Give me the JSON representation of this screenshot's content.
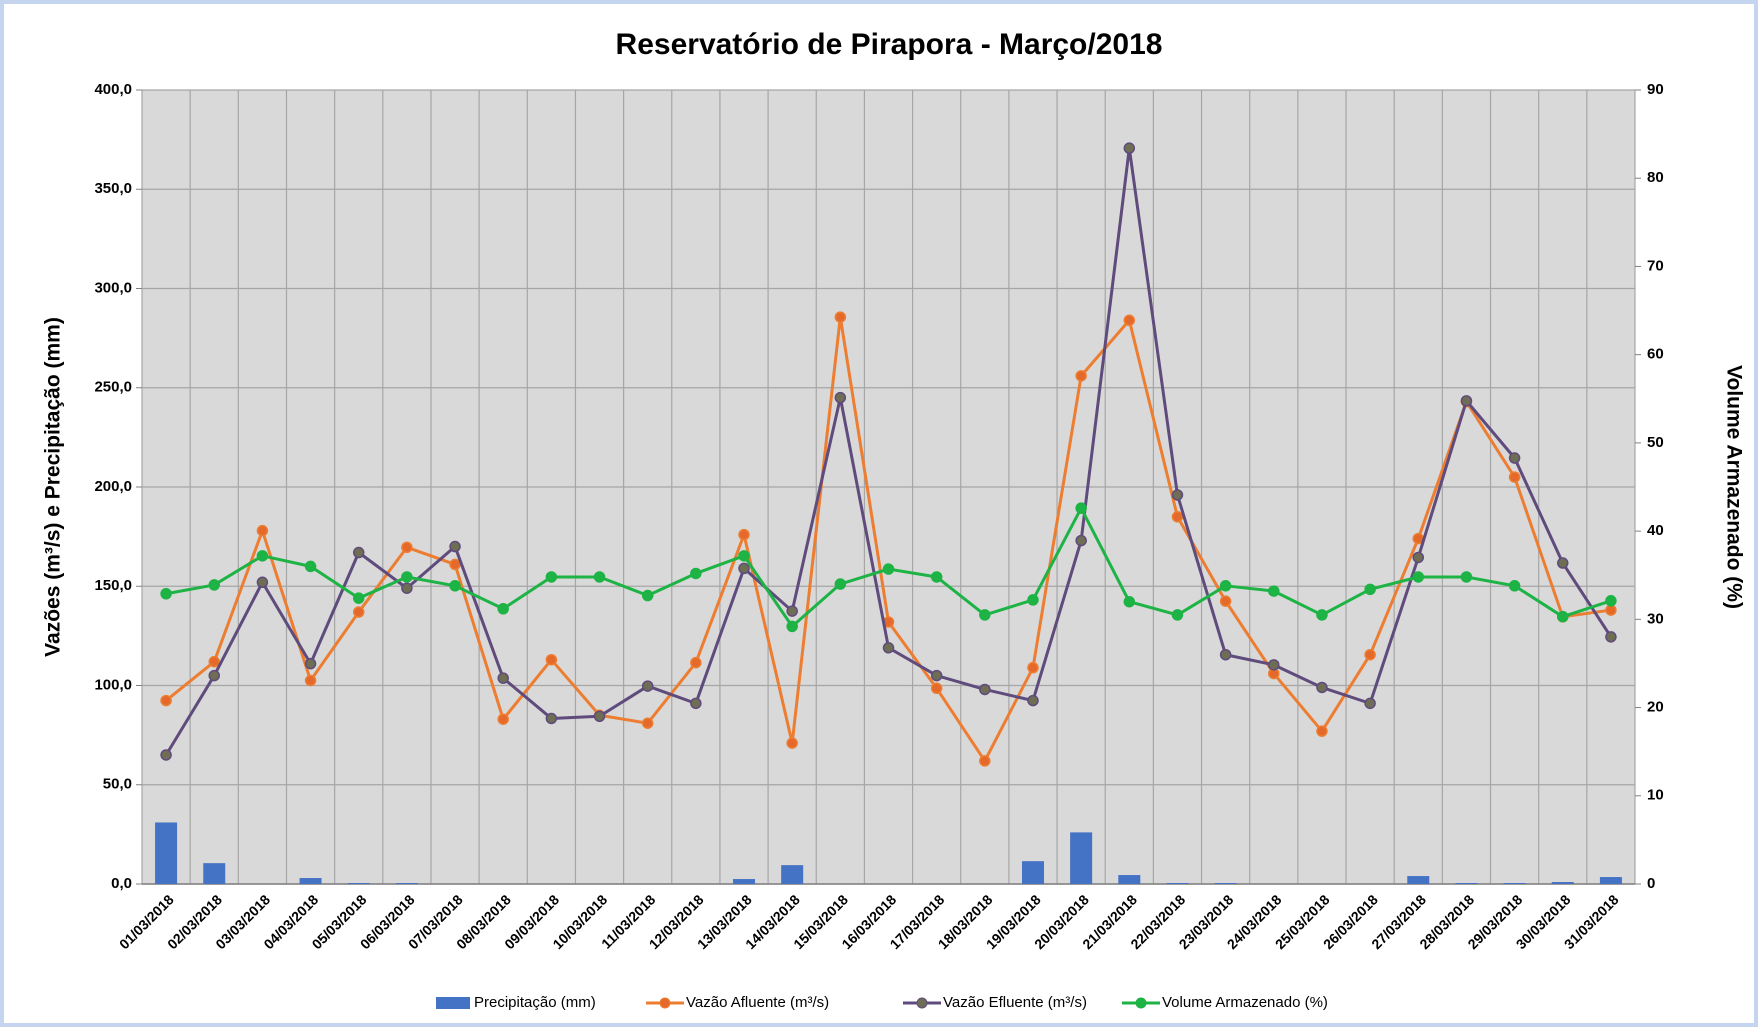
{
  "chart_data": {
    "type": "line",
    "title": "Reservatório de Pirapora - Março/2018",
    "ylabel": "Vazões (m³/s) e Precipitação (mm)",
    "y2label": "Volume Armazenado (%)",
    "categories": [
      "01/03/2018",
      "02/03/2018",
      "03/03/2018",
      "04/03/2018",
      "05/03/2018",
      "06/03/2018",
      "07/03/2018",
      "08/03/2018",
      "09/03/2018",
      "10/03/2018",
      "11/03/2018",
      "12/03/2018",
      "13/03/2018",
      "14/03/2018",
      "15/03/2018",
      "16/03/2018",
      "17/03/2018",
      "18/03/2018",
      "19/03/2018",
      "20/03/2018",
      "21/03/2018",
      "22/03/2018",
      "23/03/2018",
      "24/03/2018",
      "25/03/2018",
      "26/03/2018",
      "27/03/2018",
      "28/03/2018",
      "29/03/2018",
      "30/03/2018",
      "31/03/2018"
    ],
    "series": [
      {
        "name": "Precipitação (mm)",
        "type": "bar",
        "color": "#4472c4",
        "values": [
          31,
          10.5,
          0,
          3,
          0.5,
          0.5,
          0,
          0,
          0,
          0,
          0,
          0,
          2.5,
          9.5,
          0,
          0,
          0,
          0,
          11.5,
          26,
          4.5,
          0.5,
          0.5,
          0,
          0,
          0,
          4,
          0.5,
          0.5,
          1,
          3.5
        ]
      },
      {
        "name": "Vazão Afluente (m³/s)",
        "type": "line",
        "color": "#ed7d31",
        "marker_color": "#e4692a",
        "values": [
          92.4,
          112,
          178,
          102.5,
          137,
          169.6,
          161,
          83,
          113,
          85,
          81,
          111.5,
          176,
          71,
          285.6,
          132,
          98.6,
          62,
          109,
          256,
          284,
          185,
          142.5,
          106,
          77,
          115.5,
          174,
          243,
          205,
          134.6,
          138
        ]
      },
      {
        "name": "Vazão Efluente (m³/s)",
        "type": "line",
        "color": "#5f4b7c",
        "marker_color": "#6e6e55",
        "values": [
          65,
          105,
          152,
          111,
          167,
          149,
          170,
          103.7,
          83.4,
          84.5,
          99.7,
          91,
          159,
          137.5,
          245,
          119,
          105,
          98,
          92.4,
          173,
          370.7,
          196,
          115.5,
          110.4,
          99,
          91,
          164.5,
          243.4,
          214.6,
          161.7,
          124.5
        ]
      },
      {
        "name": "Volume Armazenado (%)",
        "type": "line",
        "axis": "y2",
        "color": "#1db345",
        "marker_color": "#1db345",
        "values": [
          32.9,
          33.9,
          37.2,
          36,
          32.4,
          34.8,
          33.8,
          31.2,
          34.8,
          34.8,
          32.7,
          35.2,
          37.2,
          29.2,
          34,
          35.7,
          34.8,
          30.5,
          32.2,
          42.6,
          32,
          30.5,
          33.8,
          33.2,
          30.5,
          33.4,
          34.8,
          34.8,
          33.8,
          30.3,
          32.1
        ]
      }
    ],
    "ylim": [
      0,
      400
    ],
    "yticks": [
      {
        "value": 0,
        "label": "0,0"
      },
      {
        "value": 50,
        "label": "50,0"
      },
      {
        "value": 100,
        "label": "100,0"
      },
      {
        "value": 150,
        "label": "150,0"
      },
      {
        "value": 200,
        "label": "200,0"
      },
      {
        "value": 250,
        "label": "250,0"
      },
      {
        "value": 300,
        "label": "300,0"
      },
      {
        "value": 350,
        "label": "350,0"
      },
      {
        "value": 400,
        "label": "400,0"
      }
    ],
    "y2lim": [
      0,
      90
    ],
    "y2ticks": [
      0,
      10,
      20,
      30,
      40,
      50,
      60,
      70,
      80,
      90
    ],
    "grid": true,
    "legend": "bottom"
  }
}
